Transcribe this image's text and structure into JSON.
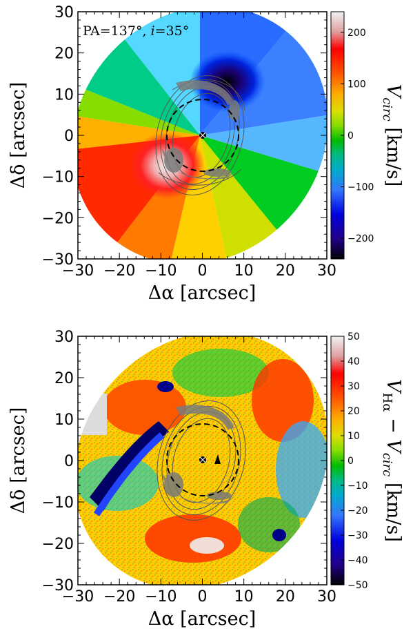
{
  "figure": {
    "panels": [
      {
        "annotation": "PA=137°, i=35°",
        "colorbar_label": "V_circ [km/s]"
      },
      {
        "annotation": "",
        "colorbar_label": "V_Hα − V_circ [km/s]"
      }
    ]
  },
  "chart_data": [
    {
      "type": "heatmap",
      "title": "",
      "xlabel": "Δα [arcsec]",
      "ylabel": "Δδ [arcsec]",
      "xlim": [
        -30,
        30
      ],
      "ylim": [
        -30,
        30
      ],
      "xticks": [
        "−30",
        "−20",
        "−10",
        "0",
        "10",
        "20",
        "30"
      ],
      "yticks": [
        "30",
        "20",
        "10",
        "0",
        "−10",
        "−20",
        "−30"
      ],
      "annotation": "PA=137°, i=35°",
      "colorbar": {
        "label": "V_circ [km/s]",
        "range": [
          -240,
          240
        ],
        "ticks": [
          200,
          100,
          0,
          -100,
          -200
        ],
        "tick_labels": [
          "200",
          "100",
          "0",
          "−100",
          "−200"
        ],
        "colormap": "nipy_spectral"
      },
      "field": "rotating disk velocity field, position angle 137°, inclination 35°",
      "center_marker": [
        0,
        0
      ],
      "dashed_circle_radius": 8.5,
      "contours": "grey Hα ring contours around nucleus"
    },
    {
      "type": "heatmap",
      "title": "",
      "xlabel": "Δα [arcsec]",
      "ylabel": "Δδ [arcsec]",
      "xlim": [
        -30,
        30
      ],
      "ylim": [
        -30,
        30
      ],
      "xticks": [
        "−30",
        "−20",
        "−10",
        "0",
        "10",
        "20",
        "30"
      ],
      "yticks": [
        "30",
        "20",
        "10",
        "0",
        "−10",
        "−20",
        "−30"
      ],
      "colorbar": {
        "label": "V_Hα − V_circ [km/s]",
        "range": [
          -50,
          50
        ],
        "ticks": [
          50,
          40,
          30,
          20,
          10,
          0,
          -10,
          -20,
          -30,
          -40,
          -50
        ],
        "tick_labels": [
          "50",
          "40",
          "30",
          "20",
          "10",
          "0",
          "−10",
          "−20",
          "−30",
          "−40",
          "−50"
        ],
        "colormap": "nipy_spectral"
      },
      "field": "residual velocity map",
      "center_marker": [
        0,
        0
      ],
      "dashed_circle_radius": 8.5,
      "contours": "grey Hα ring contours around nucleus"
    }
  ]
}
